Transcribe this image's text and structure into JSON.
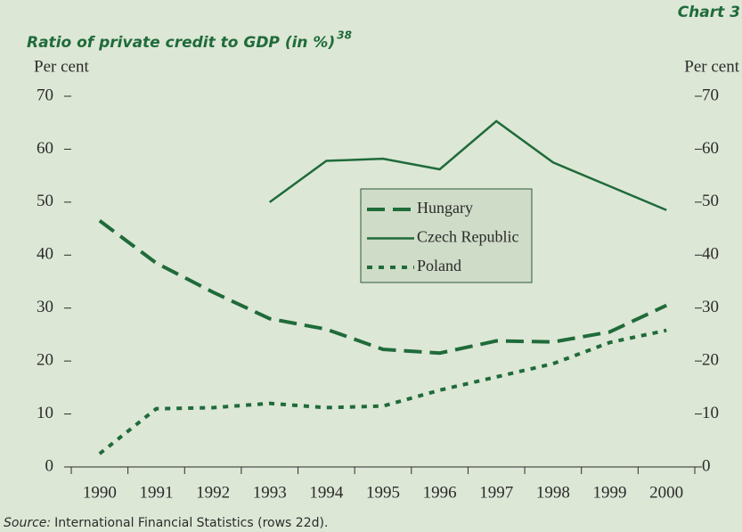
{
  "chart_data": {
    "type": "line",
    "chart_label": "Chart 3",
    "title": "Ratio of private credit to GDP (in %)",
    "title_note": "38",
    "ylabel": "Per cent",
    "y2label": "Per cent",
    "source_label": "Source:",
    "source": "International Financial Statistics (rows 22d).",
    "categories": [
      "1990",
      "1991",
      "1992",
      "1993",
      "1994",
      "1995",
      "1996",
      "1997",
      "1998",
      "1999",
      "2000"
    ],
    "series": [
      {
        "name": "Hungary",
        "color": "#1f6b3a",
        "line_style": "dashed",
        "values": [
          46.5,
          38.5,
          33,
          28,
          26,
          22.2,
          21.5,
          23.8,
          23.6,
          25.5,
          30.5
        ]
      },
      {
        "name": "Czech Republic",
        "color": "#1f6b3a",
        "line_style": "solid",
        "values": [
          null,
          null,
          null,
          50,
          57.8,
          58.2,
          56.2,
          65.3,
          57.5,
          53,
          48.5
        ]
      },
      {
        "name": "Poland",
        "color": "#1f6b3a",
        "line_style": "dotted",
        "values": [
          2.5,
          11,
          11.2,
          12,
          11.2,
          11.5,
          14.5,
          17,
          19.5,
          23.5,
          25.8
        ]
      }
    ],
    "ylim": [
      0,
      70
    ],
    "yticks": [
      0,
      10,
      20,
      30,
      40,
      50,
      60,
      70
    ],
    "y2lim": [
      0,
      70
    ],
    "y2ticks": [
      0,
      10,
      20,
      30,
      40,
      50,
      60,
      70
    ]
  }
}
